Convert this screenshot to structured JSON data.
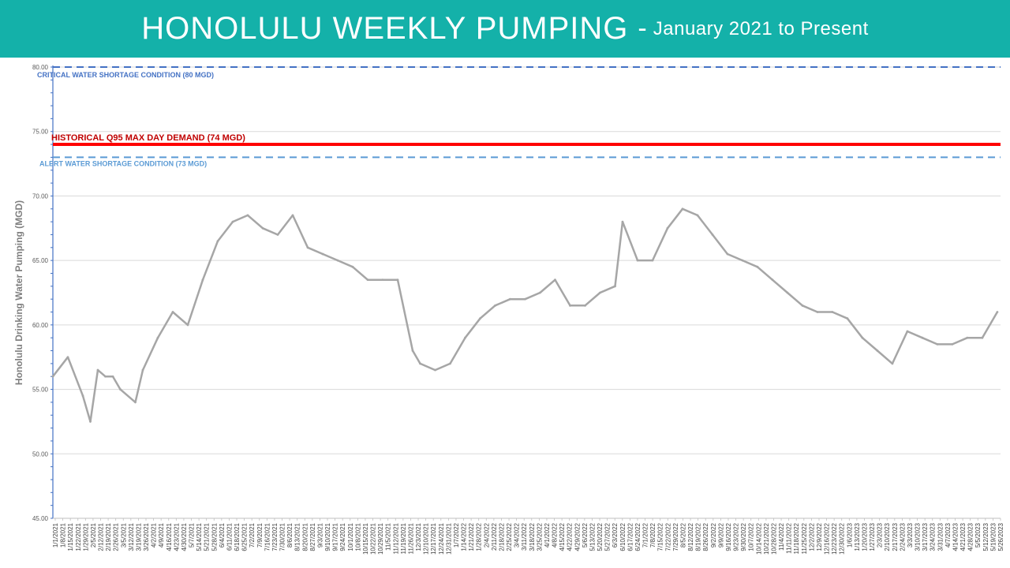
{
  "header": {
    "title": "HONOLULU WEEKLY PUMPING",
    "separator": "-",
    "subtitle": "January 2021 to Present"
  },
  "colors": {
    "header_bg": "#14b1a9",
    "series": "#a6a6a6",
    "critical": "#4472c4",
    "alert": "#5b9bd5",
    "historical": "#ff0000",
    "annotation_critical": "#4472c4",
    "annotation_alert": "#5b9bd5",
    "annotation_historical": "#c00000"
  },
  "chart_data": {
    "type": "line",
    "ylabel": "Honolulu Drinking Water Pumping (MGD)",
    "ylim": [
      45,
      80
    ],
    "ytick_values": [
      45,
      50,
      55,
      60,
      65,
      70,
      75,
      80
    ],
    "ytick_labels": [
      "45.00",
      "50.00",
      "55.00",
      "60.00",
      "65.00",
      "70.00",
      "75.00",
      "80.00"
    ],
    "grid": true,
    "x_start": "2021-01-01",
    "x_end": "2023-06-05",
    "x_tick_labels": [
      "1/1/2021",
      "1/8/2021",
      "1/15/2021",
      "1/22/2021",
      "1/29/2021",
      "2/5/2021",
      "2/12/2021",
      "2/19/2021",
      "2/26/2021",
      "3/5/2021",
      "3/12/2021",
      "3/19/2021",
      "3/26/2021",
      "4/2/2021",
      "4/9/2021",
      "4/16/2021",
      "4/23/2021",
      "4/30/2021",
      "5/7/2021",
      "5/14/2021",
      "5/21/2021",
      "5/28/2021",
      "6/4/2021",
      "6/11/2021",
      "6/18/2021",
      "6/25/2021",
      "7/2/2021",
      "7/9/2021",
      "7/16/2021",
      "7/23/2021",
      "7/30/2021",
      "8/6/2021",
      "8/13/2021",
      "8/20/2021",
      "8/27/2021",
      "9/3/2021",
      "9/10/2021",
      "9/17/2021",
      "9/24/2021",
      "10/1/2021",
      "10/8/2021",
      "10/15/2021",
      "10/22/2021",
      "10/29/2021",
      "11/5/2021",
      "11/12/2021",
      "11/19/2021",
      "11/26/2021",
      "12/3/2021",
      "12/10/2021",
      "12/17/2021",
      "12/24/2021",
      "12/31/2021",
      "1/7/2022",
      "1/14/2022",
      "1/21/2022",
      "1/28/2022",
      "2/4/2022",
      "2/11/2022",
      "2/18/2022",
      "2/25/2022",
      "3/4/2022",
      "3/11/2022",
      "3/18/2022",
      "3/25/2022",
      "4/1/2022",
      "4/8/2022",
      "4/15/2022",
      "4/22/2022",
      "4/29/2022",
      "5/6/2022",
      "5/13/2022",
      "5/20/2022",
      "5/27/2022",
      "6/3/2022",
      "6/10/2022",
      "6/17/2022",
      "6/24/2022",
      "7/1/2022",
      "7/8/2022",
      "7/15/2022",
      "7/22/2022",
      "7/29/2022",
      "8/5/2022",
      "8/12/2022",
      "8/19/2022",
      "8/26/2022",
      "9/2/2022",
      "9/9/2022",
      "9/16/2022",
      "9/23/2022",
      "9/30/2022",
      "10/7/2022",
      "10/14/2022",
      "10/21/2022",
      "10/28/2022",
      "11/4/2022",
      "11/11/2022",
      "11/18/2022",
      "11/25/2022",
      "12/2/2022",
      "12/9/2022",
      "12/16/2022",
      "12/23/2022",
      "12/30/2022",
      "1/6/2023",
      "1/13/2023",
      "1/20/2023",
      "1/27/2023",
      "2/3/2023",
      "2/10/2023",
      "2/17/2023",
      "2/24/2023",
      "3/3/2023",
      "3/10/2023",
      "3/17/2023",
      "3/24/2023",
      "3/31/2023",
      "4/7/2023",
      "4/14/2023",
      "4/21/2023",
      "4/28/2023",
      "5/5/2023",
      "5/12/2023",
      "5/19/2023",
      "5/26/2023"
    ],
    "reference_lines": [
      {
        "name": "critical",
        "value": 80,
        "label": "CRITICAL WATER SHORTAGE CONDITION (80 MGD)",
        "style": "dashed"
      },
      {
        "name": "historical",
        "value": 74,
        "label": "HISTORICAL Q95 MAX DAY DEMAND (74 MGD)",
        "style": "solid"
      },
      {
        "name": "alert",
        "value": 73,
        "label": "ALERT WATER SHORTAGE CONDITION (73 MGD)",
        "style": "dashed"
      }
    ],
    "series": [
      {
        "x": [
          "2021-01-01",
          "2021-01-15",
          "2021-01-29",
          "2021-02-05",
          "2021-02-12",
          "2021-02-19",
          "2021-02-26",
          "2021-03-05",
          "2021-03-19",
          "2021-03-26",
          "2021-04-09",
          "2021-04-23",
          "2021-05-07",
          "2021-05-21",
          "2021-06-04",
          "2021-06-18",
          "2021-07-02",
          "2021-07-16",
          "2021-07-30",
          "2021-08-13",
          "2021-08-27",
          "2021-09-10",
          "2021-09-24",
          "2021-10-08",
          "2021-10-22",
          "2021-11-05",
          "2021-11-19",
          "2021-12-03",
          "2021-12-10",
          "2021-12-24",
          "2022-01-07",
          "2022-01-21",
          "2022-02-04",
          "2022-02-18",
          "2022-03-04",
          "2022-03-18",
          "2022-04-01",
          "2022-04-15",
          "2022-04-29",
          "2022-05-13",
          "2022-05-27",
          "2022-06-10",
          "2022-06-17",
          "2022-07-01",
          "2022-07-15",
          "2022-07-29",
          "2022-08-12",
          "2022-08-26",
          "2022-09-09",
          "2022-09-23",
          "2022-10-07",
          "2022-10-21",
          "2022-11-04",
          "2022-11-18",
          "2022-12-02",
          "2022-12-16",
          "2022-12-30",
          "2023-01-13",
          "2023-01-27",
          "2023-02-10",
          "2023-02-24",
          "2023-03-10",
          "2023-03-24",
          "2023-04-07",
          "2023-04-21",
          "2023-05-05",
          "2023-05-19",
          "2023-06-02"
        ],
        "values": [
          56.0,
          57.5,
          54.5,
          52.5,
          56.5,
          56.0,
          56.0,
          55.0,
          54.0,
          56.5,
          59.0,
          61.0,
          60.0,
          63.5,
          66.5,
          68.0,
          68.5,
          67.5,
          67.0,
          68.5,
          66.0,
          65.5,
          65.0,
          64.5,
          63.5,
          63.5,
          63.5,
          58.0,
          57.0,
          56.5,
          57.0,
          59.0,
          60.5,
          61.5,
          62.0,
          62.0,
          62.5,
          63.5,
          61.5,
          61.5,
          62.5,
          63.0,
          68.0,
          65.0,
          65.0,
          67.5,
          69.0,
          68.5,
          67.0,
          65.5,
          65.0,
          64.5,
          63.5,
          62.5,
          61.5,
          61.0,
          61.0,
          60.5,
          59.0,
          58.0,
          57.0,
          59.5,
          59.0,
          58.5,
          58.5,
          59.0,
          59.0,
          61.0
        ]
      }
    ]
  }
}
